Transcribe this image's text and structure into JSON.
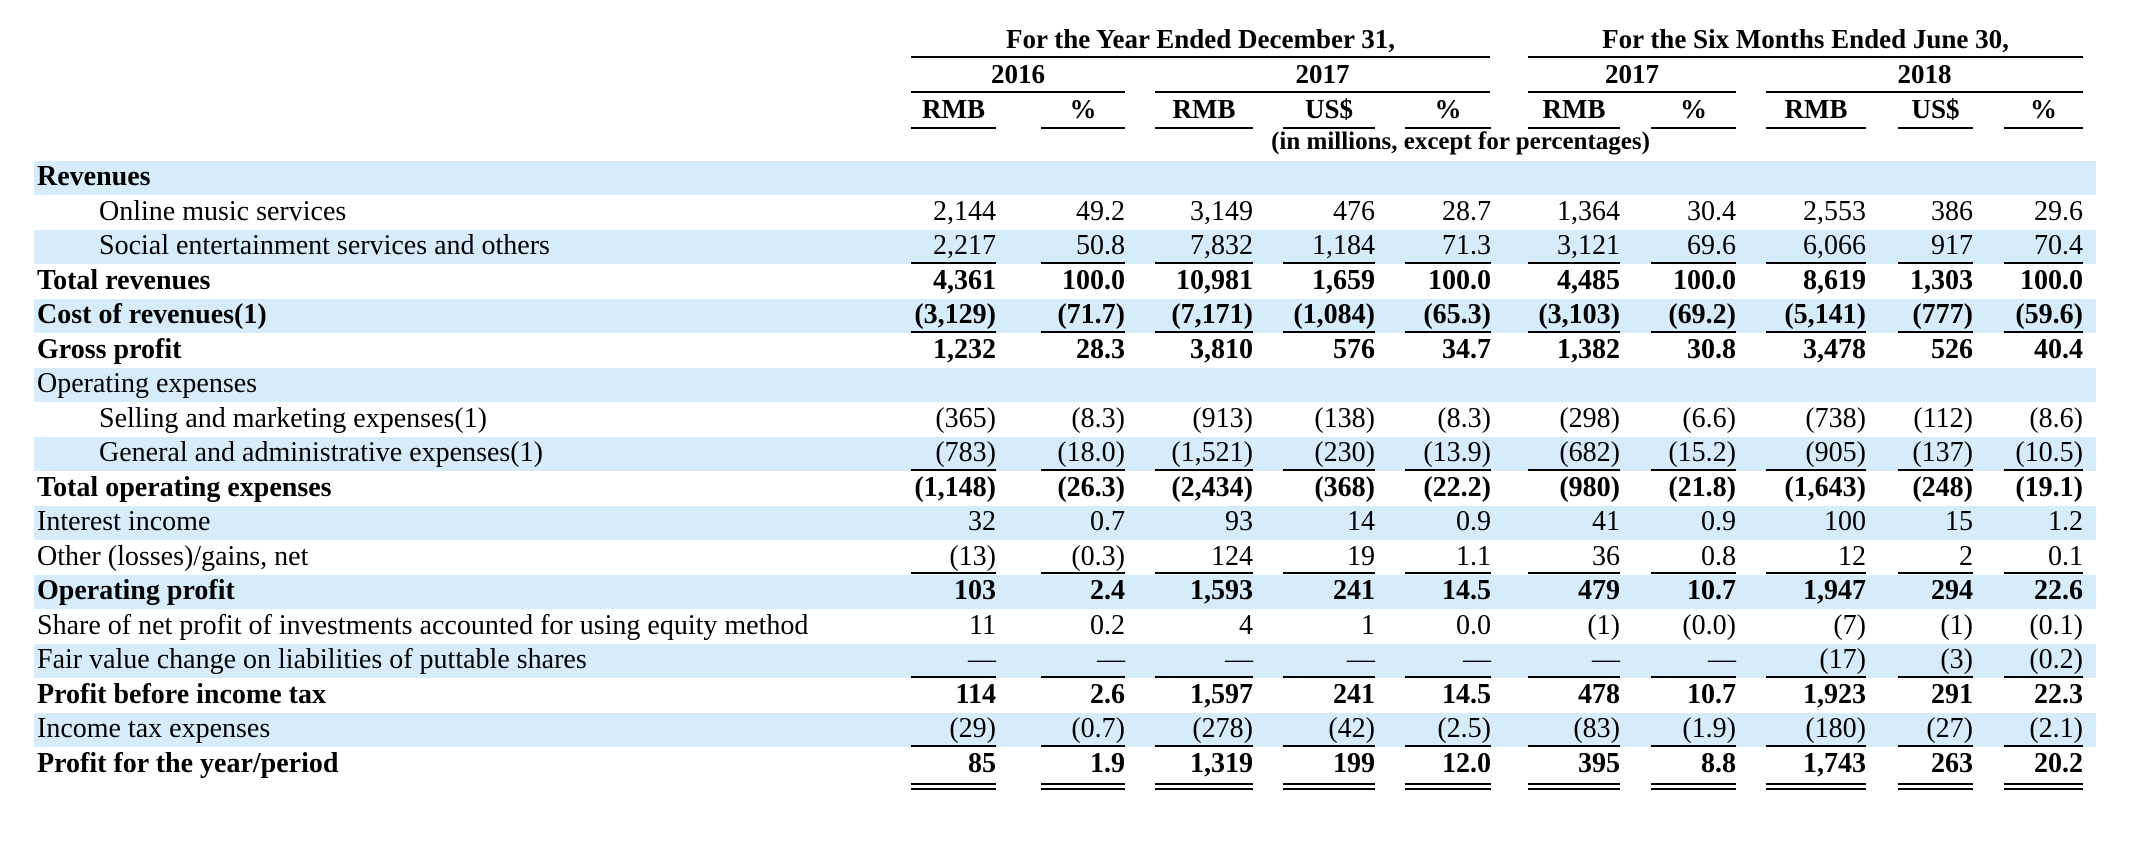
{
  "header": {
    "groups": [
      {
        "title": "For the Year Ended December 31,",
        "sub_years": [
          "2016",
          "2017"
        ]
      },
      {
        "title": "For the Six Months Ended June 30,",
        "sub_years": [
          "2017",
          "2018"
        ]
      }
    ],
    "column_headers": [
      "RMB",
      "%",
      "RMB",
      "US$",
      "%",
      "RMB",
      "%",
      "RMB",
      "US$",
      "%"
    ],
    "units_note": "(in millions, except for percentages)"
  },
  "rows": [
    {
      "label": "Revenues",
      "style": "bold",
      "values": [
        "",
        "",
        "",
        "",
        "",
        "",
        "",
        "",
        "",
        ""
      ]
    },
    {
      "label": "Online music services",
      "style": "indent",
      "values": [
        "2,144",
        "49.2",
        "3,149",
        "476",
        "28.7",
        "1,364",
        "30.4",
        "2,553",
        "386",
        "29.6"
      ]
    },
    {
      "label": "Social entertainment services and others",
      "style": "indent",
      "values": [
        "2,217",
        "50.8",
        "7,832",
        "1,184",
        "71.3",
        "3,121",
        "69.6",
        "6,066",
        "917",
        "70.4"
      ]
    },
    {
      "label": "Total revenues",
      "style": "bold",
      "values": [
        "4,361",
        "100.0",
        "10,981",
        "1,659",
        "100.0",
        "4,485",
        "100.0",
        "8,619",
        "1,303",
        "100.0"
      ]
    },
    {
      "label": "Cost of revenues(1)",
      "style": "bold",
      "values": [
        "(3,129)",
        "(71.7)",
        "(7,171)",
        "(1,084)",
        "(65.3)",
        "(3,103)",
        "(69.2)",
        "(5,141)",
        "(777)",
        "(59.6)"
      ]
    },
    {
      "label": "Gross profit",
      "style": "bold",
      "values": [
        "1,232",
        "28.3",
        "3,810",
        "576",
        "34.7",
        "1,382",
        "30.8",
        "3,478",
        "526",
        "40.4"
      ]
    },
    {
      "label": "Operating expenses",
      "style": "normal",
      "values": [
        "",
        "",
        "",
        "",
        "",
        "",
        "",
        "",
        "",
        ""
      ]
    },
    {
      "label": "Selling and marketing expenses(1)",
      "style": "indent",
      "values": [
        "(365)",
        "(8.3)",
        "(913)",
        "(138)",
        "(8.3)",
        "(298)",
        "(6.6)",
        "(738)",
        "(112)",
        "(8.6)"
      ]
    },
    {
      "label": "General and administrative expenses(1)",
      "style": "indent",
      "values": [
        "(783)",
        "(18.0)",
        "(1,521)",
        "(230)",
        "(13.9)",
        "(682)",
        "(15.2)",
        "(905)",
        "(137)",
        "(10.5)"
      ]
    },
    {
      "label": "Total operating expenses",
      "style": "bold",
      "values": [
        "(1,148)",
        "(26.3)",
        "(2,434)",
        "(368)",
        "(22.2)",
        "(980)",
        "(21.8)",
        "(1,643)",
        "(248)",
        "(19.1)"
      ]
    },
    {
      "label": "Interest income",
      "style": "normal",
      "values": [
        "32",
        "0.7",
        "93",
        "14",
        "0.9",
        "41",
        "0.9",
        "100",
        "15",
        "1.2"
      ]
    },
    {
      "label": "Other (losses)/gains, net",
      "style": "normal",
      "values": [
        "(13)",
        "(0.3)",
        "124",
        "19",
        "1.1",
        "36",
        "0.8",
        "12",
        "2",
        "0.1"
      ]
    },
    {
      "label": "Operating profit",
      "style": "bold",
      "values": [
        "103",
        "2.4",
        "1,593",
        "241",
        "14.5",
        "479",
        "10.7",
        "1,947",
        "294",
        "22.6"
      ]
    },
    {
      "label": "Share of net profit of investments accounted for using equity method",
      "style": "normal",
      "values": [
        "11",
        "0.2",
        "4",
        "1",
        "0.0",
        "(1)",
        "(0.0)",
        "(7)",
        "(1)",
        "(0.1)"
      ]
    },
    {
      "label": "Fair value change on liabilities of puttable shares",
      "style": "normal",
      "values": [
        "—",
        "—",
        "—",
        "—",
        "—",
        "—",
        "—",
        "(17)",
        "(3)",
        "(0.2)"
      ]
    },
    {
      "label": "Profit before income tax",
      "style": "bold",
      "values": [
        "114",
        "2.6",
        "1,597",
        "241",
        "14.5",
        "478",
        "10.7",
        "1,923",
        "291",
        "22.3"
      ]
    },
    {
      "label": "Income tax expenses",
      "style": "normal",
      "values": [
        "(29)",
        "(0.7)",
        "(278)",
        "(42)",
        "(2.5)",
        "(83)",
        "(1.9)",
        "(180)",
        "(27)",
        "(2.1)"
      ]
    },
    {
      "label": "Profit for the year/period",
      "style": "bold",
      "values": [
        "85",
        "1.9",
        "1,319",
        "199",
        "12.0",
        "395",
        "8.8",
        "1,743",
        "263",
        "20.2"
      ]
    }
  ]
}
